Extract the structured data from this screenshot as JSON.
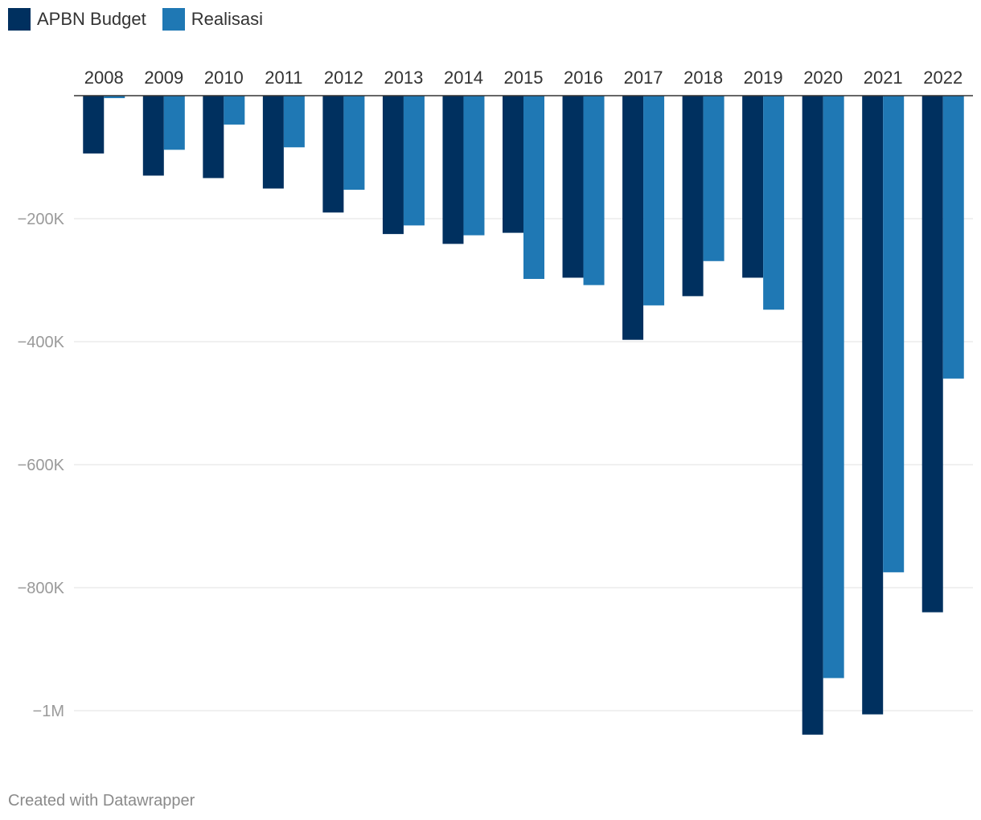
{
  "chart_data": {
    "type": "bar",
    "orientation": "vertical",
    "categories": [
      "2008",
      "2009",
      "2010",
      "2011",
      "2012",
      "2013",
      "2014",
      "2015",
      "2016",
      "2017",
      "2018",
      "2019",
      "2020",
      "2021",
      "2022"
    ],
    "series": [
      {
        "name": "APBN Budget",
        "color": "#00305f",
        "values": [
          -94,
          -130,
          -134,
          -151,
          -190,
          -225,
          -241,
          -223,
          -296,
          -397,
          -326,
          -296,
          -1039,
          -1006,
          -840
        ]
      },
      {
        "name": "Realisasi",
        "color": "#1f78b4",
        "values": [
          -4,
          -88,
          -47,
          -84,
          -153,
          -211,
          -227,
          -298,
          -308,
          -341,
          -269,
          -348,
          -947,
          -775,
          -460
        ]
      }
    ],
    "y_axis": {
      "ticks": [
        -200000,
        -400000,
        -600000,
        -800000,
        -1000000
      ],
      "tick_labels": [
        "−200K",
        "−400K",
        "−600K",
        "−800K",
        "−1M"
      ],
      "ylim": [
        -1040000,
        0
      ]
    },
    "value_unit_note": "values in thousands",
    "legend_position": "top-left",
    "xaxis_position": "top",
    "grid": true
  },
  "legend": {
    "items": [
      {
        "label": "APBN Budget",
        "color": "#00305f"
      },
      {
        "label": "Realisasi",
        "color": "#1f78b4"
      }
    ]
  },
  "footer": {
    "credit": "Created with Datawrapper"
  },
  "colors": {
    "grid": "#e0e0e0",
    "baseline": "#333333",
    "tick_text": "#9a9a9a",
    "category_text": "#333333"
  }
}
